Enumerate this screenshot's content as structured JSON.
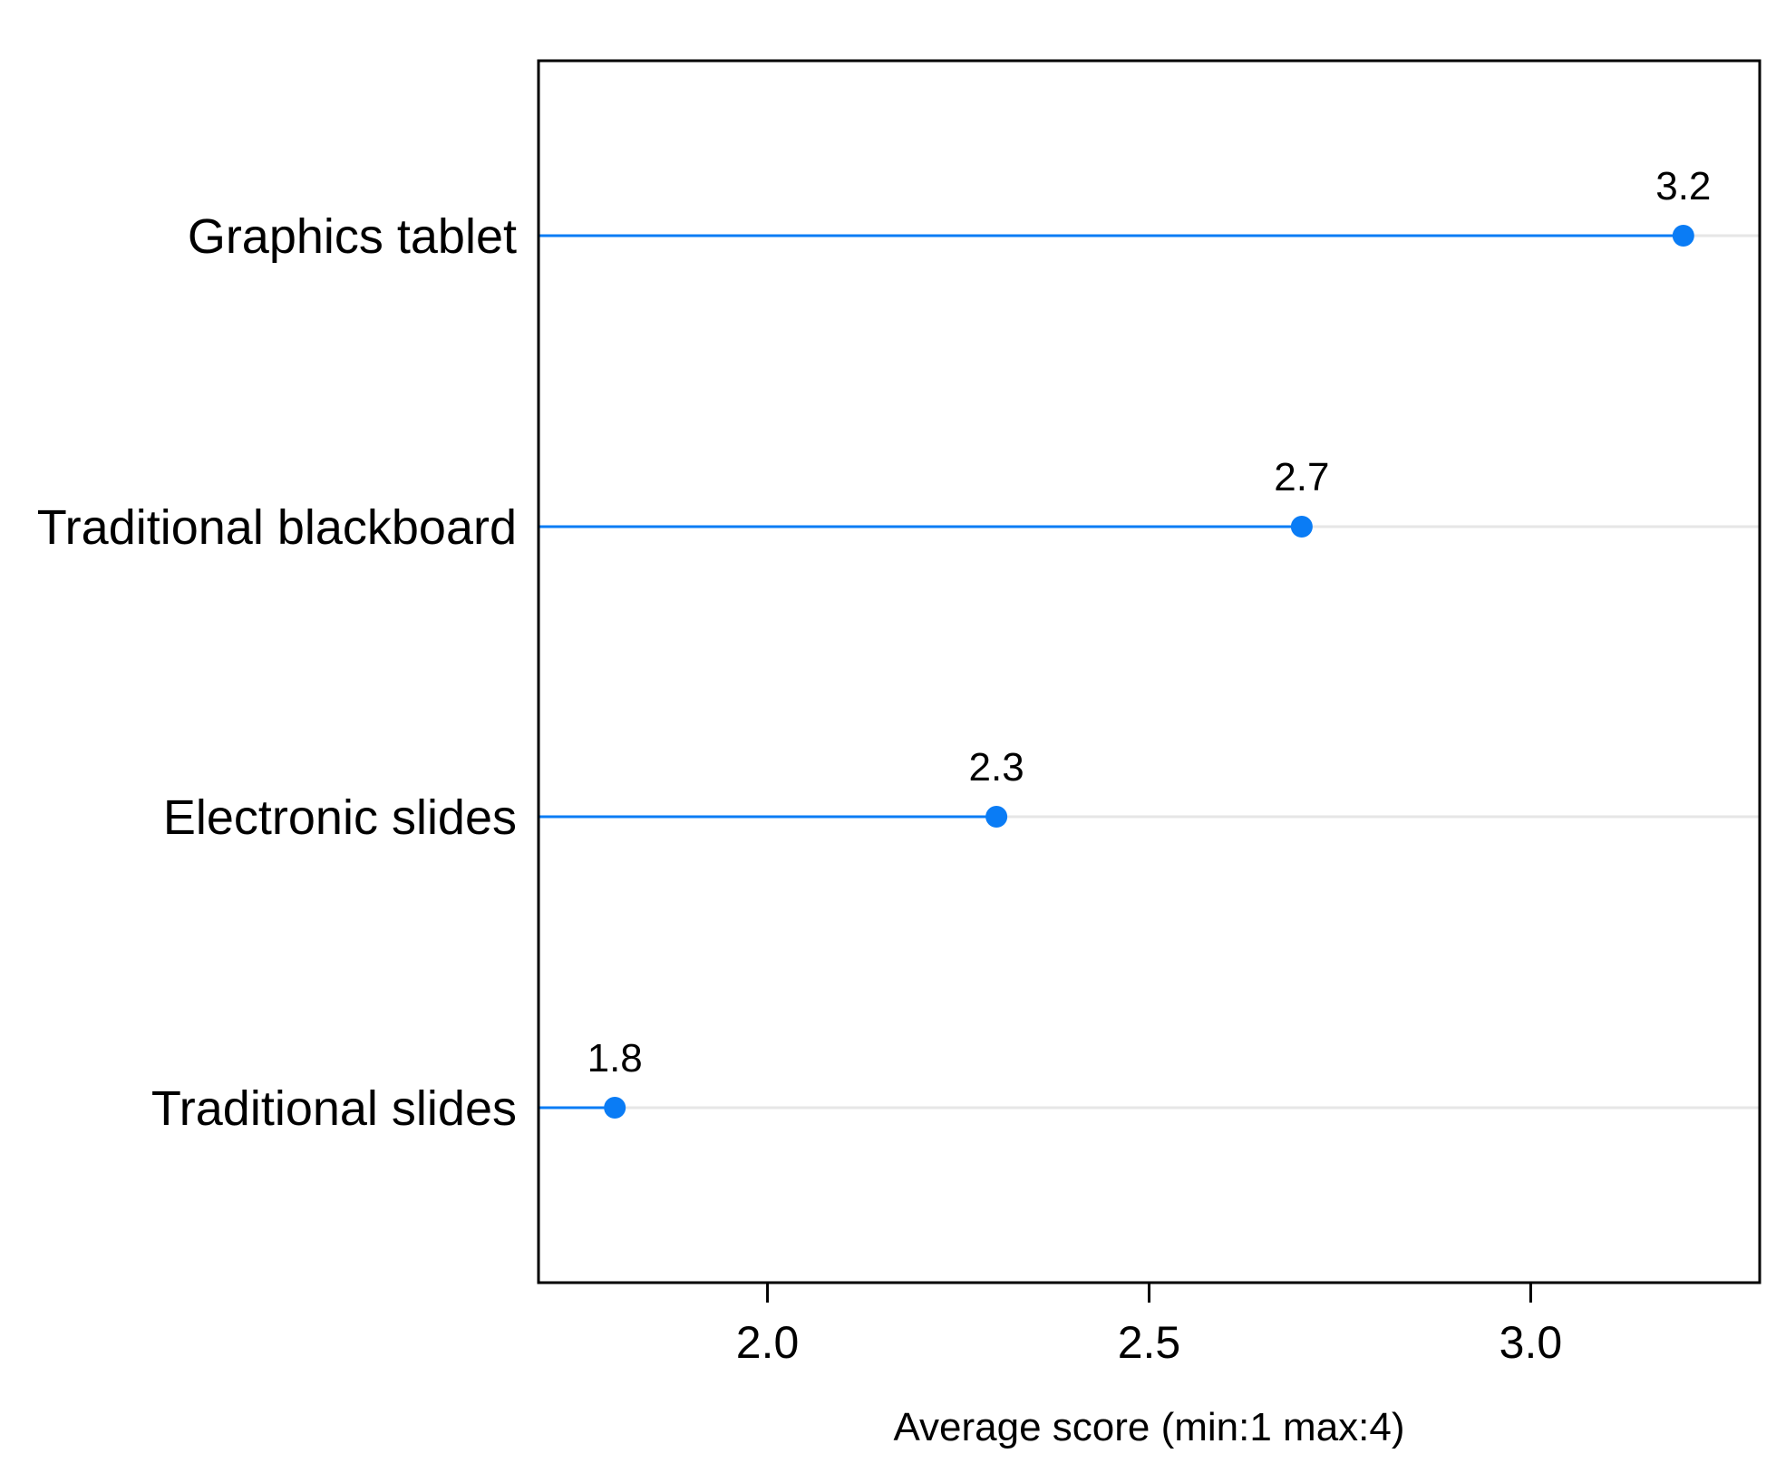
{
  "chart_data": {
    "type": "lollipop",
    "categories": [
      "Graphics tablet",
      "Traditional blackboard",
      "Electronic slides",
      "Traditional slides"
    ],
    "values": [
      3.2,
      2.7,
      2.3,
      1.8
    ],
    "value_labels": [
      "3.2",
      "2.7",
      "2.3",
      "1.8"
    ],
    "xlabel": "Average score (min:1 max:4)",
    "ylabel": "",
    "title": "",
    "xlim": [
      1.7,
      3.3
    ],
    "x_ticks": [
      2.0,
      2.5,
      3.0
    ],
    "x_tick_labels": [
      "2.0",
      "2.5",
      "3.0"
    ],
    "grid": "horizontal",
    "legend": "none",
    "colors": {
      "marker": "#0a7cf5",
      "stem": "#0a7cf5",
      "grid": "#e6e6e6",
      "frame": "#000000"
    }
  }
}
